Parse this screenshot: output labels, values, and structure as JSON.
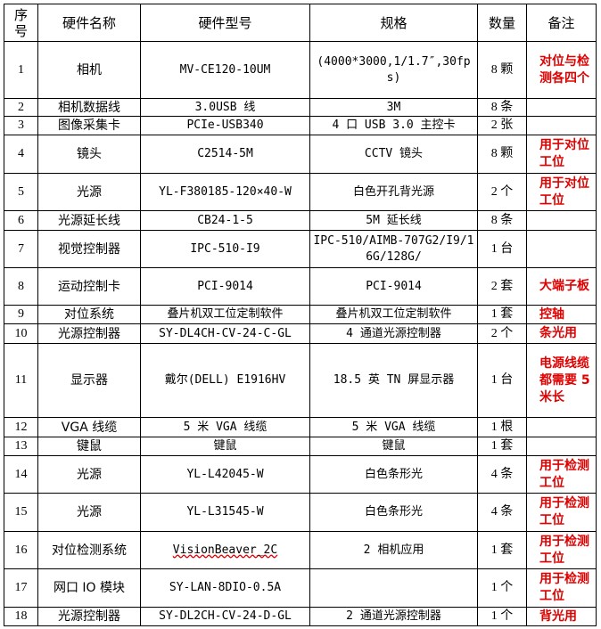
{
  "table": {
    "header": [
      "序号",
      "硬件名称",
      "硬件型号",
      "规格",
      "数量",
      "备注"
    ],
    "rows": [
      [
        "1",
        "相机",
        "MV-CE120-10UM",
        "(4000*3000,1/1.7″,30fps)",
        "8 颗",
        "对位与检测各四个"
      ],
      [
        "2",
        "相机数据线",
        "3.0USB 线",
        "3M",
        "8 条",
        null
      ],
      [
        "3",
        "图像采集卡",
        "PCIe-USB340",
        "4 口 USB 3.0 主控卡",
        "2 张",
        null
      ],
      [
        "4",
        "镜头",
        "C2514-5M",
        "CCTV 镜头",
        "8 颗",
        "用于对位工位"
      ],
      [
        "5",
        "光源",
        "YL-F380185-120×40-W",
        "白色开孔背光源",
        "2 个",
        "用于对位工位"
      ],
      [
        "6",
        "光源延长线",
        "CB24-1-5",
        "5M 延长线",
        "8 条",
        null
      ],
      [
        "7",
        "视觉控制器",
        "IPC-510-I9",
        "IPC-510/AIMB-707G2/I9/16G/128G/",
        "1 台",
        null
      ],
      [
        "8",
        "运动控制卡",
        "PCI-9014",
        "PCI-9014",
        "2 套",
        "大端子板"
      ],
      [
        "9",
        "对位系统",
        "叠片机双工位定制软件",
        "叠片机双工位定制软件",
        "1 套",
        "控轴"
      ],
      [
        "10",
        "光源控制器",
        "SY-DL4CH-CV-24-C-GL",
        "4 通道光源控制器",
        "2 个",
        "条光用"
      ],
      [
        "11",
        "显示器",
        "戴尔(DELL) E1916HV",
        "18.5 英 TN 屏显示器",
        "1 台",
        "电源线缆都需要 5 米长"
      ],
      [
        "12",
        "VGA 线缆",
        "5 米 VGA 线缆",
        "5 米 VGA 线缆",
        "1 根",
        null
      ],
      [
        "13",
        "键鼠",
        "键鼠",
        "键鼠",
        "1 套",
        null
      ],
      [
        "14",
        "光源",
        "YL-L42045-W",
        "白色条形光",
        "4 条",
        "用于检测工位"
      ],
      [
        "15",
        "光源",
        "YL-L31545-W",
        "白色条形光",
        "4 条",
        "用于检测工位"
      ],
      [
        "16",
        "对位检测系统",
        "VisionBeaver_2C",
        "2 相机应用",
        "1 套",
        "用于检测工位"
      ],
      [
        "17",
        "网口 IO 模块",
        "SY-LAN-8DIO-0.5A",
        null,
        "1 个",
        "用于检测工位"
      ],
      [
        "18",
        "光源控制器",
        "SY-DL2CH-CV-24-D-GL",
        "2 通道光源控制器",
        "1 个",
        "背光用"
      ]
    ]
  }
}
